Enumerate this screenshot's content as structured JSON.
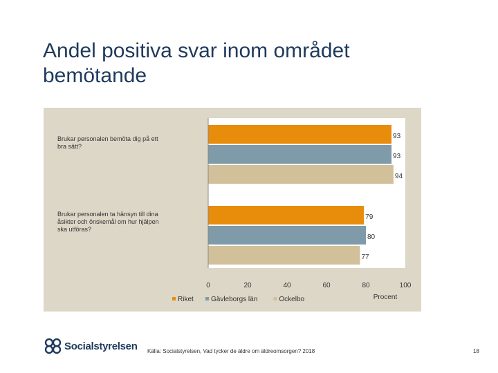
{
  "slide": {
    "title": "Andel positiva svar inom området bemötande",
    "source": "Källa: Socialstyrelsen, Vad tycker de äldre om äldreomsorgen? 2018",
    "page_number": "18",
    "logo_text": "Socialstyrelsen"
  },
  "chart_data": {
    "type": "bar",
    "orientation": "horizontal",
    "categories": [
      "Brukar personalen bemöta dig på ett bra sätt?",
      "Brukar personalen ta hänsyn till dina åsikter och önskemål om hur hjälpen ska utföras?"
    ],
    "series": [
      {
        "name": "Riket",
        "values": [
          93,
          79
        ],
        "color": "#e88c0c"
      },
      {
        "name": "Gävleborgs län",
        "values": [
          93,
          80
        ],
        "color": "#7f9aa8"
      },
      {
        "name": "Ockelbo",
        "values": [
          94,
          77
        ],
        "color": "#d1c09a"
      }
    ],
    "xlim": [
      0,
      100
    ],
    "xticks": [
      0,
      20,
      40,
      60,
      80,
      100
    ],
    "xlabel": "Procent",
    "legend": "bottom",
    "grid": false
  }
}
